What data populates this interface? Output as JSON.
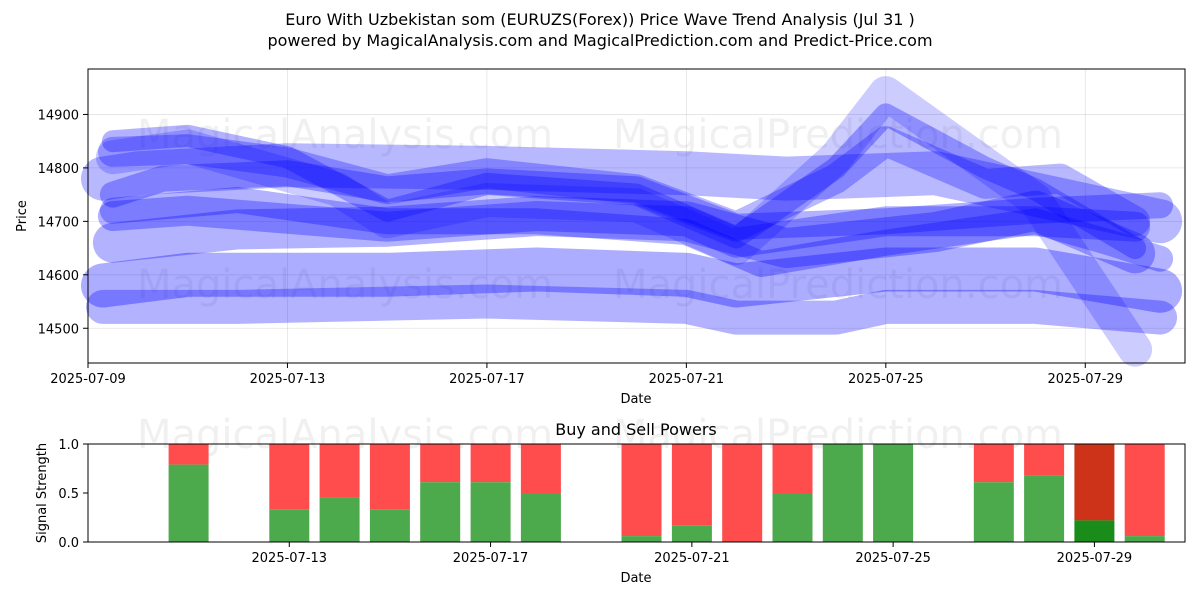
{
  "title_line1": "Euro With Uzbekistan som (EURUZS(Forex)) Price Wave Trend Analysis (Jul 31 )",
  "title_line2": "powered by MagicalAnalysis.com and MagicalPrediction.com and Predict-Price.com",
  "watermarks": [
    "MagicalAnalysis.com",
    "MagicalPrediction.com"
  ],
  "chart_data": [
    {
      "type": "line",
      "xlabel": "Date",
      "ylabel": "Price",
      "xlim": [
        "2025-07-09",
        "2025-07-31"
      ],
      "ylim": [
        14435,
        14985
      ],
      "x_ticks": [
        "2025-07-09",
        "2025-07-13",
        "2025-07-17",
        "2025-07-21",
        "2025-07-25",
        "2025-07-29"
      ],
      "y_ticks": [
        14500,
        14600,
        14700,
        14800,
        14900
      ],
      "grid": true,
      "band_color": "#0000ff",
      "series": [
        {
          "points": [
            [
              "2025-07-09.3",
              14780
            ],
            [
              "2025-07-10",
              14790
            ],
            [
              "2025-07-13",
              14805
            ],
            [
              "2025-07-17",
              14800
            ],
            [
              "2025-07-21",
              14790
            ],
            [
              "2025-07-23",
              14780
            ],
            [
              "2025-07-26",
              14790
            ],
            [
              "2025-07-30.5",
              14700
            ]
          ]
        },
        {
          "points": [
            [
              "2025-07-09.5",
              14750
            ],
            [
              "2025-07-10.5",
              14780
            ],
            [
              "2025-07-13",
              14790
            ],
            [
              "2025-07-15",
              14760
            ],
            [
              "2025-07-17",
              14775
            ],
            [
              "2025-07-20",
              14760
            ],
            [
              "2025-07-22",
              14690
            ],
            [
              "2025-07-25",
              14700
            ],
            [
              "2025-07-28",
              14720
            ],
            [
              "2025-07-30.5",
              14730
            ]
          ]
        },
        {
          "points": [
            [
              "2025-07-09.5",
              14830
            ],
            [
              "2025-07-11",
              14835
            ],
            [
              "2025-07-13",
              14810
            ],
            [
              "2025-07-15",
              14760
            ],
            [
              "2025-07-17",
              14790
            ],
            [
              "2025-07-20",
              14760
            ],
            [
              "2025-07-22",
              14690
            ],
            [
              "2025-07-24",
              14780
            ],
            [
              "2025-07-25",
              14850
            ],
            [
              "2025-07-27",
              14770
            ],
            [
              "2025-07-28.5",
              14780
            ],
            [
              "2025-07-30",
              14700
            ]
          ]
        },
        {
          "points": [
            [
              "2025-07-09.5",
              14850
            ],
            [
              "2025-07-11",
              14860
            ],
            [
              "2025-07-13",
              14820
            ],
            [
              "2025-07-15",
              14720
            ],
            [
              "2025-07-17",
              14770
            ],
            [
              "2025-07-20",
              14750
            ],
            [
              "2025-07-22",
              14670
            ],
            [
              "2025-07-24",
              14800
            ],
            [
              "2025-07-25",
              14900
            ],
            [
              "2025-07-27",
              14800
            ],
            [
              "2025-07-28",
              14760
            ],
            [
              "2025-07-30",
              14650
            ]
          ]
        },
        {
          "points": [
            [
              "2025-07-09.5",
              14820
            ],
            [
              "2025-07-11",
              14840
            ],
            [
              "2025-07-14",
              14760
            ],
            [
              "2025-07-15",
              14700
            ],
            [
              "2025-07-17",
              14740
            ],
            [
              "2025-07-20",
              14730
            ],
            [
              "2025-07-22",
              14650
            ],
            [
              "2025-07-24",
              14820
            ],
            [
              "2025-07-25",
              14940
            ],
            [
              "2025-07-28",
              14740
            ],
            [
              "2025-07-30",
              14460
            ]
          ]
        },
        {
          "points": [
            [
              "2025-07-09.5",
              14710
            ],
            [
              "2025-07-11",
              14720
            ],
            [
              "2025-07-15",
              14690
            ],
            [
              "2025-07-18",
              14710
            ],
            [
              "2025-07-21",
              14700
            ],
            [
              "2025-07-22",
              14660
            ],
            [
              "2025-07-25",
              14700
            ],
            [
              "2025-07-28",
              14700
            ],
            [
              "2025-07-30",
              14690
            ]
          ]
        },
        {
          "points": [
            [
              "2025-07-09.5",
              14660
            ],
            [
              "2025-07-12",
              14685
            ],
            [
              "2025-07-15",
              14690
            ],
            [
              "2025-07-18",
              14710
            ],
            [
              "2025-07-21",
              14700
            ],
            [
              "2025-07-23",
              14650
            ],
            [
              "2025-07-26",
              14680
            ],
            [
              "2025-07-28",
              14720
            ],
            [
              "2025-07-30",
              14640
            ]
          ]
        },
        {
          "points": [
            [
              "2025-07-09.5",
              14720
            ],
            [
              "2025-07-12",
              14740
            ],
            [
              "2025-07-15",
              14700
            ],
            [
              "2025-07-18",
              14700
            ],
            [
              "2025-07-21",
              14680
            ],
            [
              "2025-07-22.5",
              14620
            ],
            [
              "2025-07-25",
              14660
            ],
            [
              "2025-07-28",
              14700
            ],
            [
              "2025-07-29.5",
              14660
            ],
            [
              "2025-07-30.5",
              14630
            ]
          ]
        },
        {
          "points": [
            [
              "2025-07-09.3",
              14580
            ],
            [
              "2025-07-11",
              14600
            ],
            [
              "2025-07-15",
              14600
            ],
            [
              "2025-07-18",
              14610
            ],
            [
              "2025-07-21",
              14600
            ],
            [
              "2025-07-22",
              14580
            ],
            [
              "2025-07-25",
              14610
            ],
            [
              "2025-07-28",
              14610
            ],
            [
              "2025-07-30.5",
              14570
            ]
          ]
        },
        {
          "points": [
            [
              "2025-07-09.3",
              14540
            ],
            [
              "2025-07-12",
              14540
            ],
            [
              "2025-07-17",
              14550
            ],
            [
              "2025-07-21",
              14540
            ],
            [
              "2025-07-22",
              14520
            ],
            [
              "2025-07-24",
              14520
            ],
            [
              "2025-07-25",
              14540
            ],
            [
              "2025-07-28",
              14540
            ],
            [
              "2025-07-30.5",
              14520
            ]
          ]
        }
      ]
    },
    {
      "type": "bar",
      "title": "Buy and Sell Powers",
      "xlabel": "Date",
      "ylabel": "Signal Strength",
      "ylim": [
        0,
        1
      ],
      "y_ticks": [
        "0.0",
        "0.5",
        "1.0"
      ],
      "x_ticks": [
        "2025-07-13",
        "2025-07-17",
        "2025-07-21",
        "2025-07-25",
        "2025-07-29"
      ],
      "buy_color": "#4caa4c",
      "sell_color": "#ff4c4c",
      "highlight_buy_color": "#1a8c1a",
      "highlight_sell_color": "#cc3319",
      "categories": [
        "2025-07-11",
        "2025-07-13",
        "2025-07-14",
        "2025-07-15",
        "2025-07-16",
        "2025-07-17",
        "2025-07-18",
        "2025-07-20",
        "2025-07-21",
        "2025-07-22",
        "2025-07-23",
        "2025-07-24",
        "2025-07-25",
        "2025-07-27",
        "2025-07-28",
        "2025-07-29",
        "2025-07-30"
      ],
      "buy": [
        0.79,
        0.33,
        0.45,
        0.33,
        0.61,
        0.61,
        0.5,
        0.06,
        0.17,
        0.0,
        0.5,
        1.0,
        1.0,
        0.61,
        0.68,
        0.22,
        0.06
      ],
      "highlight_index": 15
    }
  ]
}
